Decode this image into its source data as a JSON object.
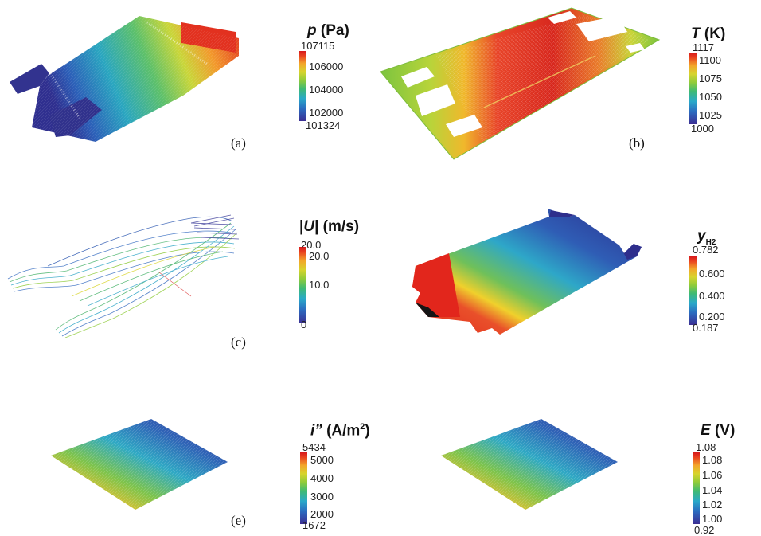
{
  "panels": [
    {
      "id": "a",
      "label": "(a)",
      "legend": {
        "symbol": "p",
        "unit": "(Pa)",
        "max": "107115",
        "ticks": [
          "106000",
          "104000",
          "102000"
        ],
        "min": "101324"
      }
    },
    {
      "id": "b",
      "label": "(b)",
      "legend": {
        "symbol": "T",
        "unit": "(K)",
        "max": "1117",
        "ticks": [
          "1100",
          "1075",
          "1050",
          "1025"
        ],
        "min": "1000"
      }
    },
    {
      "id": "c",
      "label": "(c)",
      "legend": {
        "symbol": "U",
        "unit": "(m/s)",
        "max": "20.0",
        "ticks": [
          "20.0",
          "10.0"
        ],
        "min": "0"
      }
    },
    {
      "id": "d",
      "label": "",
      "legend": {
        "symbol": "y",
        "subscript": "H2",
        "max": "0.782",
        "ticks": [
          "0.600",
          "0.400",
          "0.200"
        ],
        "min": "0.187"
      }
    },
    {
      "id": "e",
      "label": "(e)",
      "legend": {
        "symbol": "i”",
        "unit": "(A/m",
        "unit_sup": "2",
        "unit_end": ")",
        "max": "5434",
        "ticks": [
          "5000",
          "4000",
          "3000",
          "2000"
        ],
        "min": "1672"
      }
    },
    {
      "id": "f",
      "label": "",
      "legend": {
        "symbol": "E",
        "unit": "(V)",
        "max": "1.08",
        "ticks": [
          "1.08",
          "1.06",
          "1.04",
          "1.02",
          "1.00"
        ],
        "min": "0.92"
      }
    }
  ]
}
